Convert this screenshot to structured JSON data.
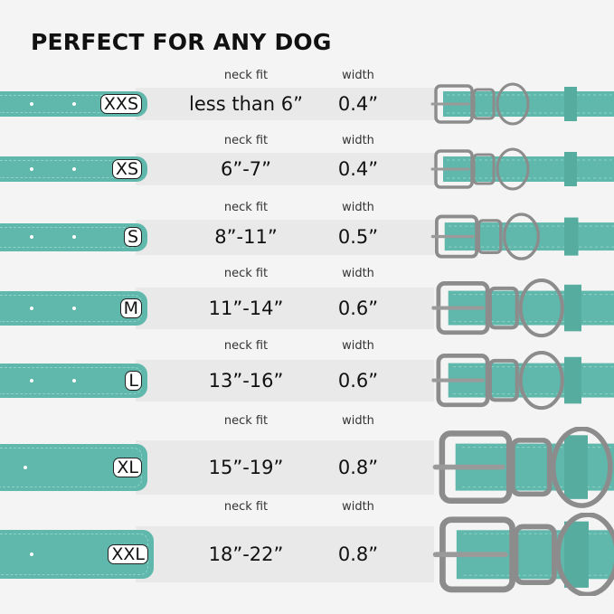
{
  "title": "PERFECT FOR ANY DOG",
  "colors": {
    "strap": "#5fb8ab",
    "background": "#f4f4f4",
    "band": "#e9e9e9",
    "hardware": "#9a9a9a"
  },
  "column_labels": {
    "neck_fit": "neck fit",
    "width": "width"
  },
  "sizes": [
    {
      "size": "XXS",
      "neck_fit": "less than 6”",
      "width": "0.4”"
    },
    {
      "size": "XS",
      "neck_fit": "6”-7”",
      "width": "0.4”"
    },
    {
      "size": "S",
      "neck_fit": "8”-11”",
      "width": "0.5”"
    },
    {
      "size": "M",
      "neck_fit": "11”-14”",
      "width": "0.6”"
    },
    {
      "size": "L",
      "neck_fit": "13”-16”",
      "width": "0.6”"
    },
    {
      "size": "XL",
      "neck_fit": "15”-19”",
      "width": "0.8”"
    },
    {
      "size": "XXL",
      "neck_fit": "18”-22”",
      "width": "0.8”"
    }
  ]
}
